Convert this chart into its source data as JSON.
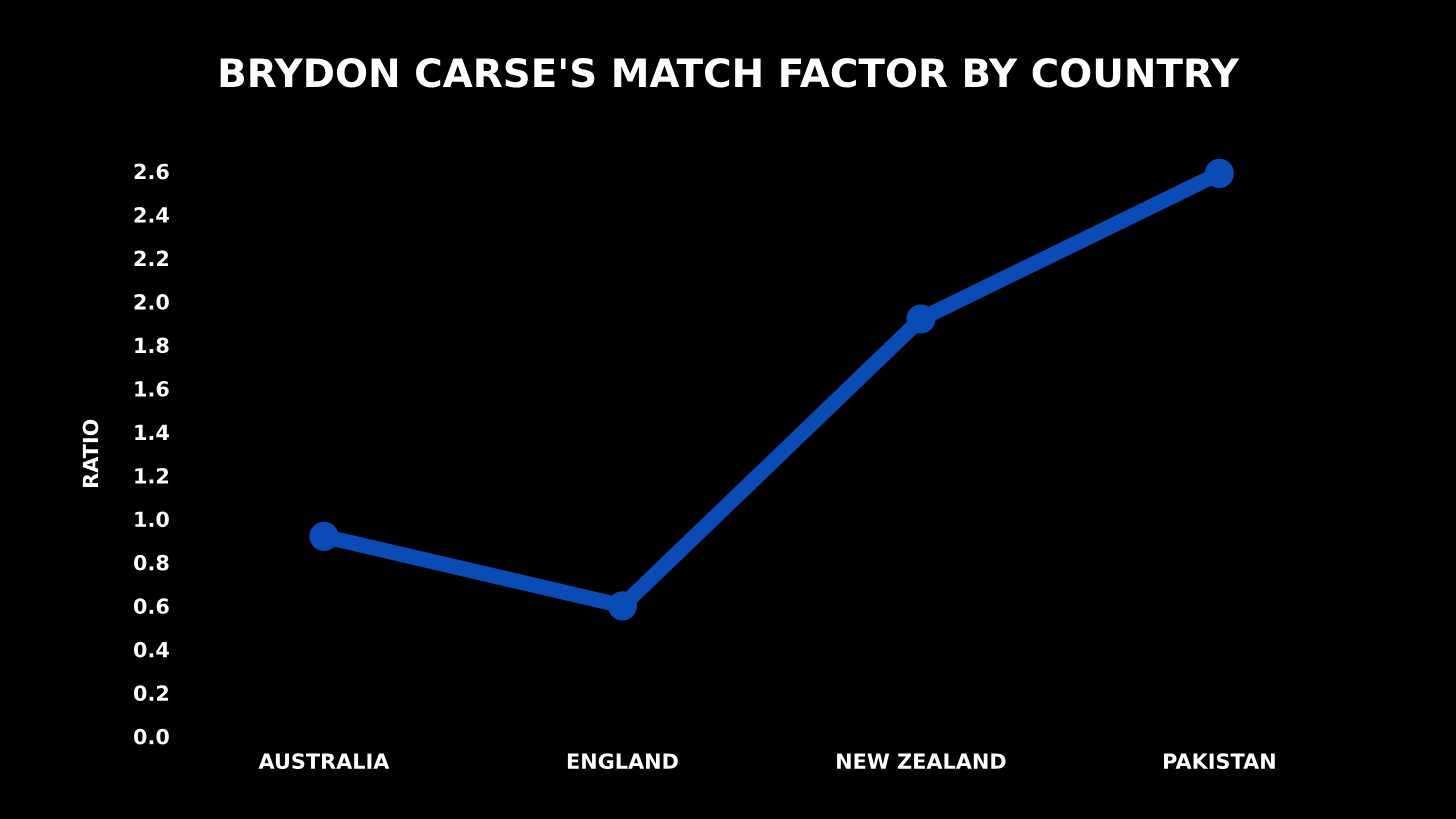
{
  "chart_data": {
    "type": "line",
    "title": "BRYDON CARSE'S MATCH FACTOR BY COUNTRY",
    "ylabel": "RATIO",
    "categories": [
      "AUSTRALIA",
      "ENGLAND",
      "NEW ZEALAND",
      "PAKISTAN"
    ],
    "series": [
      {
        "color": "#0a4bb5",
        "values": [
          0.92,
          0.6,
          1.92,
          2.59
        ]
      }
    ],
    "ylim": [
      0,
      2.6
    ],
    "yticks": [
      {
        "value": 0,
        "label": "0.0"
      },
      0.2,
      0.4,
      0.6,
      0.8,
      {
        "value": 1,
        "label": "1.0"
      },
      1.2,
      1.4,
      1.6,
      1.8,
      {
        "value": 2,
        "label": "2.0"
      },
      2.2,
      2.4,
      2.6
    ],
    "grid": false,
    "marker": "circle",
    "line_style": "solid"
  }
}
